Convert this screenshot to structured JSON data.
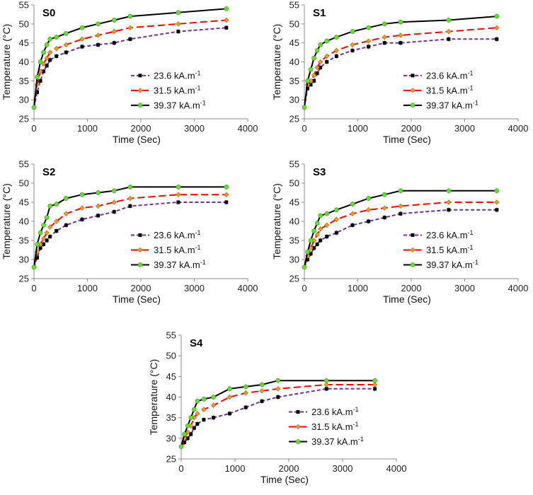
{
  "chart_data": [
    {
      "type": "line",
      "title": "S0",
      "xlabel": "Time (Sec)",
      "ylabel": "Temperature (°C)",
      "xlim": [
        0,
        4000
      ],
      "ylim": [
        25,
        55
      ],
      "xticks": [
        "0",
        "1000",
        "2000",
        "3000",
        "4000"
      ],
      "yticks": [
        "25",
        "30",
        "35",
        "40",
        "45",
        "50",
        "55"
      ],
      "series": [
        {
          "name": "23.6 kA.m",
          "unit_sup": "-1",
          "color": "#7030A0",
          "dash": "dashed",
          "marker": "square",
          "x": [
            0,
            60,
            120,
            180,
            240,
            300,
            420,
            600,
            900,
            1200,
            1500,
            1800,
            2700,
            3600
          ],
          "y": [
            28,
            32,
            35,
            37.5,
            39,
            40.5,
            41.5,
            42.5,
            44,
            44.5,
            45,
            46,
            48,
            49
          ]
        },
        {
          "name": "31.5 kA.m",
          "unit_sup": "-1",
          "color": "#FF0000",
          "dash": "longdash",
          "marker": "diamond",
          "x": [
            0,
            60,
            120,
            180,
            240,
            300,
            420,
            600,
            900,
            1200,
            1500,
            1800,
            2700,
            3600
          ],
          "y": [
            28,
            34,
            37.5,
            39.5,
            41,
            42.5,
            43.5,
            44.5,
            46,
            47,
            48,
            49,
            50,
            51
          ]
        },
        {
          "name": "39.37 kA.m",
          "unit_sup": "-1",
          "color": "#000000",
          "dash": "solid",
          "marker": "circle",
          "x": [
            0,
            60,
            120,
            180,
            240,
            300,
            420,
            600,
            900,
            1200,
            1500,
            1800,
            2700,
            3600
          ],
          "y": [
            28,
            36,
            40,
            42.5,
            44.5,
            46,
            46.5,
            47.5,
            49,
            50,
            51,
            52,
            53,
            54
          ]
        }
      ]
    },
    {
      "type": "line",
      "title": "S1",
      "xlabel": "Time (Sec)",
      "ylabel": "Temperature (°C)",
      "xlim": [
        0,
        4000
      ],
      "ylim": [
        25,
        55
      ],
      "xticks": [
        "0",
        "1000",
        "2000",
        "3000",
        "4000"
      ],
      "yticks": [
        "25",
        "30",
        "35",
        "40",
        "45",
        "50",
        "55"
      ],
      "series": [
        {
          "name": "23.6 kA.m",
          "unit_sup": "-1",
          "color": "#7030A0",
          "dash": "dashed",
          "marker": "square",
          "x": [
            0,
            60,
            120,
            180,
            240,
            300,
            420,
            600,
            900,
            1200,
            1500,
            1800,
            2700,
            3600
          ],
          "y": [
            28,
            33,
            34,
            35,
            37,
            38.5,
            40,
            41.5,
            43,
            44,
            45,
            45,
            46,
            46
          ]
        },
        {
          "name": "31.5 kA.m",
          "unit_sup": "-1",
          "color": "#FF0000",
          "dash": "longdash",
          "marker": "diamond",
          "x": [
            0,
            60,
            120,
            180,
            240,
            300,
            420,
            600,
            900,
            1200,
            1500,
            1800,
            2700,
            3600
          ],
          "y": [
            28,
            34,
            35,
            36.5,
            38.5,
            40,
            41.5,
            43,
            44.5,
            45.5,
            46.5,
            47,
            48,
            49
          ]
        },
        {
          "name": "39.37 kA.m",
          "unit_sup": "-1",
          "color": "#000000",
          "dash": "solid",
          "marker": "circle",
          "x": [
            0,
            60,
            120,
            180,
            240,
            300,
            420,
            600,
            900,
            1200,
            1500,
            1800,
            2700,
            3600
          ],
          "y": [
            28,
            35,
            38,
            41,
            43,
            44.5,
            45.5,
            46.5,
            48,
            49,
            50,
            50.5,
            51,
            52
          ]
        }
      ]
    },
    {
      "type": "line",
      "title": "S2",
      "xlabel": "Time (Sec)",
      "ylabel": "Temperature (°C)",
      "xlim": [
        0,
        4000
      ],
      "ylim": [
        25,
        55
      ],
      "xticks": [
        "0",
        "1000",
        "2000",
        "3000",
        "4000"
      ],
      "yticks": [
        "25",
        "30",
        "35",
        "40",
        "45",
        "50",
        "55"
      ],
      "series": [
        {
          "name": "23.6 kA.m",
          "unit_sup": "-1",
          "color": "#7030A0",
          "dash": "dashed",
          "marker": "square",
          "x": [
            0,
            60,
            120,
            180,
            240,
            300,
            420,
            600,
            900,
            1200,
            1500,
            1800,
            2700,
            3600
          ],
          "y": [
            28,
            30.5,
            33,
            34,
            35,
            36,
            37.5,
            39,
            40.5,
            41.5,
            42.5,
            44,
            45,
            45
          ]
        },
        {
          "name": "31.5 kA.m",
          "unit_sup": "-1",
          "color": "#FF0000",
          "dash": "longdash",
          "marker": "diamond",
          "x": [
            0,
            60,
            120,
            180,
            240,
            300,
            420,
            600,
            900,
            1200,
            1500,
            1800,
            2700,
            3600
          ],
          "y": [
            28,
            32,
            34,
            35.5,
            37,
            38.5,
            40,
            42,
            43.5,
            44,
            45,
            46,
            47,
            47
          ]
        },
        {
          "name": "39.37 kA.m",
          "unit_sup": "-1",
          "color": "#000000",
          "dash": "solid",
          "marker": "circle",
          "x": [
            0,
            60,
            120,
            180,
            240,
            300,
            420,
            600,
            900,
            1200,
            1500,
            1800,
            2700,
            3600
          ],
          "y": [
            28,
            34,
            37,
            39,
            41,
            44,
            44.5,
            46,
            47,
            47.5,
            48,
            49,
            49,
            49
          ]
        }
      ]
    },
    {
      "type": "line",
      "title": "S3",
      "xlabel": "Time (Sec)",
      "ylabel": "Temperature (°C)",
      "xlim": [
        0,
        4000
      ],
      "ylim": [
        25,
        55
      ],
      "xticks": [
        "0",
        "1000",
        "2000",
        "3000",
        "4000"
      ],
      "yticks": [
        "25",
        "30",
        "35",
        "40",
        "45",
        "50",
        "55"
      ],
      "series": [
        {
          "name": "23.6 kA.m",
          "unit_sup": "-1",
          "color": "#7030A0",
          "dash": "dashed",
          "marker": "square",
          "x": [
            0,
            60,
            120,
            180,
            240,
            300,
            420,
            600,
            900,
            1200,
            1500,
            1800,
            2700,
            3600
          ],
          "y": [
            28,
            30,
            31.5,
            33,
            34,
            35,
            36,
            37,
            39,
            40,
            41,
            42,
            43,
            43
          ]
        },
        {
          "name": "31.5 kA.m",
          "unit_sup": "-1",
          "color": "#FF0000",
          "dash": "longdash",
          "marker": "diamond",
          "x": [
            0,
            60,
            120,
            180,
            240,
            300,
            420,
            600,
            900,
            1200,
            1500,
            1800,
            2700,
            3600
          ],
          "y": [
            28,
            31,
            33,
            35,
            36.5,
            38,
            39,
            40.5,
            42,
            43,
            43.5,
            44,
            45,
            45
          ]
        },
        {
          "name": "39.37 kA.m",
          "unit_sup": "-1",
          "color": "#000000",
          "dash": "solid",
          "marker": "circle",
          "x": [
            0,
            60,
            120,
            180,
            240,
            300,
            420,
            600,
            900,
            1200,
            1500,
            1800,
            2700,
            3600
          ],
          "y": [
            28,
            32,
            35,
            37.5,
            39.5,
            41.5,
            42,
            43,
            44.5,
            46,
            47,
            48,
            48,
            48
          ]
        }
      ]
    },
    {
      "type": "line",
      "title": "S4",
      "xlabel": "Time (Sec)",
      "ylabel": "Temperature (°C)",
      "xlim": [
        0,
        4000
      ],
      "ylim": [
        25,
        55
      ],
      "xticks": [
        "0",
        "1000",
        "2000",
        "3000",
        "4000"
      ],
      "yticks": [
        "25",
        "30",
        "35",
        "40",
        "45",
        "50",
        "55"
      ],
      "series": [
        {
          "name": "23.6 kA.m",
          "unit_sup": "-1",
          "color": "#7030A0",
          "dash": "dashed",
          "marker": "square",
          "x": [
            0,
            60,
            120,
            180,
            240,
            300,
            420,
            600,
            900,
            1200,
            1500,
            1800,
            2700,
            3600
          ],
          "y": [
            28,
            29,
            30,
            31,
            32.5,
            33.5,
            34.5,
            35,
            36,
            37.5,
            39,
            40,
            42,
            42
          ]
        },
        {
          "name": "31.5 kA.m",
          "unit_sup": "-1",
          "color": "#FF0000",
          "dash": "longdash",
          "marker": "diamond",
          "x": [
            0,
            60,
            120,
            180,
            240,
            300,
            420,
            600,
            900,
            1200,
            1500,
            1800,
            2700,
            3600
          ],
          "y": [
            28,
            30,
            31.5,
            33,
            35,
            36,
            37,
            38,
            40,
            41,
            41.5,
            42,
            43,
            43
          ]
        },
        {
          "name": "39.37 kA.m",
          "unit_sup": "-1",
          "color": "#000000",
          "dash": "solid",
          "marker": "circle",
          "x": [
            0,
            60,
            120,
            180,
            240,
            300,
            420,
            600,
            900,
            1200,
            1500,
            1800,
            2700,
            3600
          ],
          "y": [
            28,
            31,
            33,
            35,
            37,
            39,
            39.5,
            40,
            42,
            42.5,
            43,
            44,
            44,
            44
          ]
        }
      ]
    }
  ]
}
